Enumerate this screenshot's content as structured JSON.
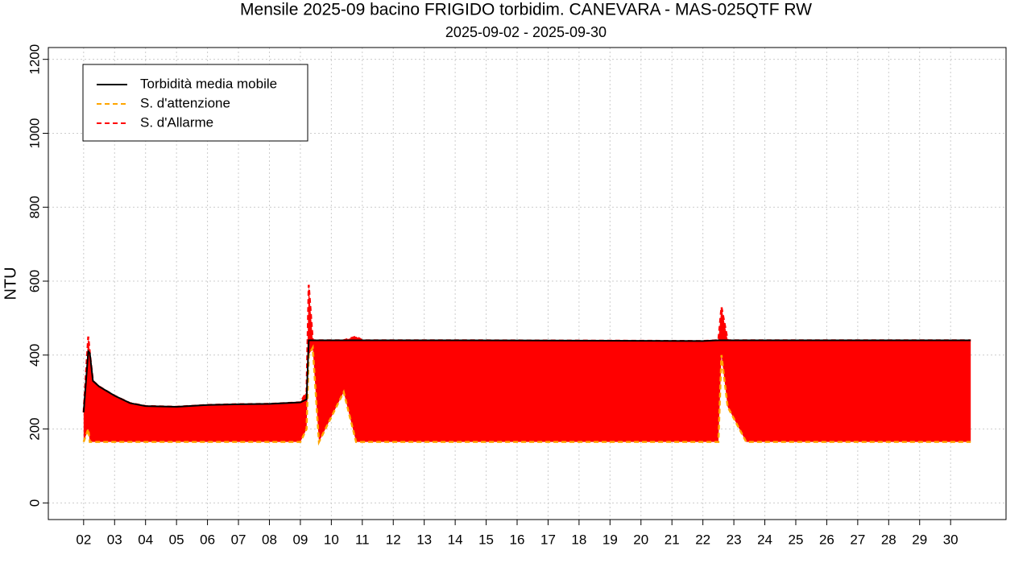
{
  "chart_data": {
    "type": "line",
    "title": "Mensile 2025-09 bacino FRIGIDO torbidim. CANEVARA - MAS-025QTF RW",
    "subtitle": "2025-09-02 - 2025-09-30",
    "y_label": "NTU",
    "x": [
      2.0,
      2.15,
      2.2,
      2.3,
      2.5,
      3,
      3.5,
      4,
      5,
      6,
      7,
      8,
      9,
      9.2,
      9.27,
      9.4,
      9.6,
      10.4,
      10.8,
      11,
      14,
      22,
      22.5,
      22.6,
      22.8,
      23.4,
      30.65
    ],
    "series": [
      {
        "name": "Torbidità media mobile",
        "color": "#000000",
        "values": [
          245,
          410,
          405,
          330,
          315,
          290,
          270,
          262,
          260,
          265,
          267,
          268,
          272,
          280,
          440,
          440,
          440,
          440,
          440,
          440,
          440,
          438,
          440,
          440,
          440,
          440,
          440
        ]
      },
      {
        "name": "S. d'attenzione",
        "color": "#ffa500",
        "values": [
          165,
          200,
          165,
          165,
          165,
          165,
          165,
          165,
          165,
          165,
          165,
          165,
          165,
          200,
          400,
          420,
          165,
          300,
          165,
          165,
          165,
          165,
          165,
          400,
          260,
          165,
          165
        ]
      },
      {
        "name": "S. d'Allarme",
        "color": "#ff0000",
        "values": [
          245,
          450,
          405,
          330,
          315,
          290,
          270,
          262,
          260,
          265,
          267,
          268,
          272,
          300,
          590,
          440,
          440,
          440,
          450,
          440,
          440,
          438,
          440,
          530,
          440,
          440,
          440
        ]
      }
    ],
    "xlim": [
      0.86,
      31.79
    ],
    "ylim": [
      -45,
      1232
    ],
    "xticks": [
      {
        "value": 2,
        "label": "02"
      },
      {
        "value": 3,
        "label": "03"
      },
      {
        "value": 4,
        "label": "04"
      },
      {
        "value": 5,
        "label": "05"
      },
      {
        "value": 6,
        "label": "06"
      },
      {
        "value": 7,
        "label": "07"
      },
      {
        "value": 8,
        "label": "08"
      },
      {
        "value": 9,
        "label": "09"
      },
      10,
      11,
      12,
      13,
      14,
      15,
      16,
      17,
      18,
      19,
      20,
      21,
      22,
      23,
      24,
      25,
      26,
      27,
      28,
      29,
      30
    ],
    "yticks": [
      0,
      200,
      400,
      600,
      800,
      1000,
      1200
    ],
    "grid": true,
    "legend": "top-left"
  }
}
